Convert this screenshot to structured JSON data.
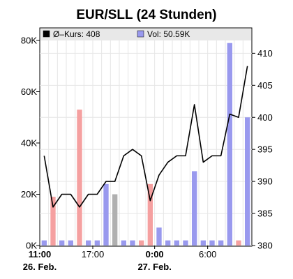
{
  "chart_data": {
    "type": "line+bar",
    "title": "EUR/SLL (24 Stunden)",
    "legend": {
      "placement": "top",
      "items": [
        {
          "key": "price",
          "label": "Ø–Kurs: 408",
          "color": "#000000"
        },
        {
          "key": "volume",
          "label": "Vol: 50.59K",
          "color": "#9999ee"
        }
      ]
    },
    "grid": true,
    "x_ticks": [
      {
        "label": "11:00",
        "sub": "26. Feb.",
        "bold": true,
        "index": 0
      },
      {
        "label": "17:00",
        "sub": "",
        "bold": false,
        "index": 6
      },
      {
        "label": "0:00",
        "sub": "27. Feb.",
        "bold": true,
        "index": 13
      },
      {
        "label": "6:00",
        "sub": "",
        "bold": false,
        "index": 19
      }
    ],
    "y_right": {
      "label": "",
      "range": [
        380,
        412
      ],
      "ticks": [
        "380",
        "385",
        "390",
        "395",
        "400",
        "405",
        "410"
      ]
    },
    "y_left": {
      "label": "",
      "range": [
        0,
        80000
      ],
      "ticks": [
        "0K",
        "20K",
        "40K",
        "60K",
        "80K"
      ]
    },
    "price_series": {
      "name": "Ø–Kurs",
      "color": "#000000",
      "values": [
        394,
        386,
        388,
        388,
        386,
        388,
        388,
        390,
        390,
        394,
        395,
        394,
        387,
        391,
        393,
        394,
        394,
        402,
        393,
        394,
        394,
        400.5,
        400,
        408
      ]
    },
    "volume_series": {
      "name": "Vol",
      "values": [
        2000,
        19000,
        2000,
        2000,
        53000,
        2000,
        2000,
        24000,
        20000,
        2000,
        2000,
        2000,
        24000,
        7000,
        2000,
        2000,
        2000,
        29000,
        2000,
        2000,
        2000,
        79000,
        2000,
        50000
      ],
      "colors": [
        "#9999ee",
        "#f5a0a0",
        "#9999ee",
        "#9999ee",
        "#f5a0a0",
        "#9999ee",
        "#9999ee",
        "#9999ee",
        "#b0b0b0",
        "#9999ee",
        "#9999ee",
        "#f5a0a0",
        "#f5a0a0",
        "#9999ee",
        "#9999ee",
        "#9999ee",
        "#9999ee",
        "#9999ee",
        "#9999ee",
        "#9999ee",
        "#9999ee",
        "#9999ee",
        "#f5a0a0",
        "#9999ee"
      ]
    }
  }
}
